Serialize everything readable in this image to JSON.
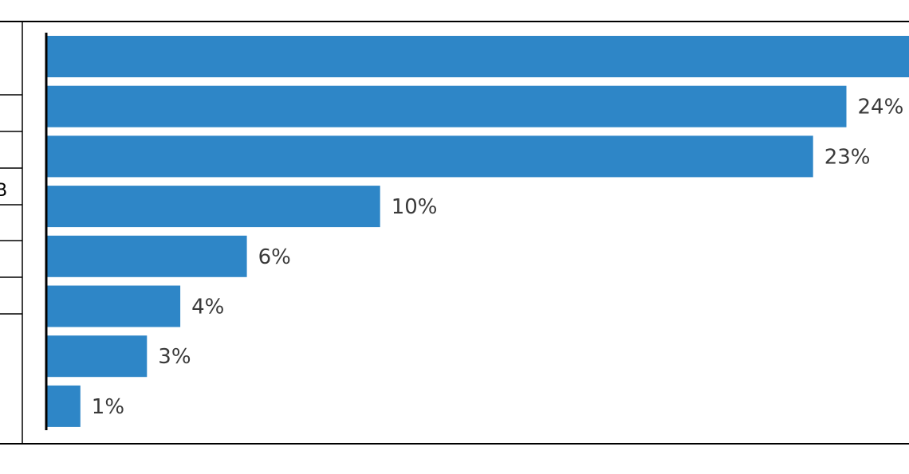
{
  "colors": {
    "bar": "#2e86c7",
    "axis": "#000000",
    "frame": "#000000",
    "label": "#3a3a3a"
  },
  "table_partial": {
    "visible_text": "В"
  },
  "chart_data": {
    "type": "bar",
    "orientation": "horizontal",
    "categories": [
      "",
      "",
      "",
      "",
      "",
      "",
      "",
      ""
    ],
    "values": [
      26,
      24,
      23,
      10,
      6,
      4,
      3,
      1
    ],
    "data_labels": [
      "",
      "24%",
      "23%",
      "10%",
      "6%",
      "4%",
      "3%",
      "1%"
    ],
    "xlim": [
      0,
      26
    ],
    "value_unit": "%",
    "grid": false,
    "legend": "none"
  }
}
